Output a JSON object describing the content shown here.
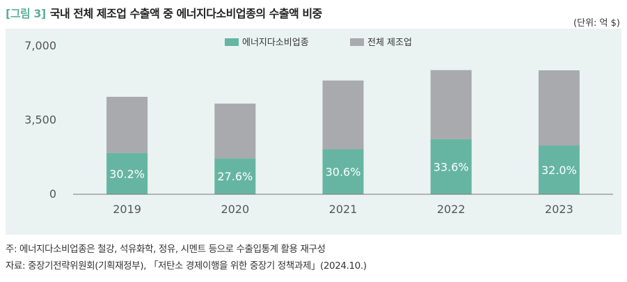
{
  "header": {
    "figure_label": "[그림 3]",
    "title": "국내 전체 제조업 수출액 중 에너지다소비업종의 수출액 비중",
    "unit": "(단위: 억 $)"
  },
  "chart_data": {
    "type": "bar",
    "stacked": true,
    "categories": [
      "2019",
      "2020",
      "2021",
      "2022",
      "2023"
    ],
    "series": [
      {
        "name": "에너지다소비업종",
        "color": "#66b5a3",
        "values": [
          1950,
          1700,
          2120,
          2600,
          2300
        ],
        "labels": [
          "30.2%",
          "27.6%",
          "30.6%",
          "33.6%",
          "32.0%"
        ]
      },
      {
        "name": "전체 제조업",
        "color": "#a9aaad",
        "values": [
          2650,
          2580,
          3250,
          3260,
          3550
        ]
      }
    ],
    "yticks": [
      0,
      3500,
      7000
    ],
    "ytick_labels": [
      "0",
      "3,500",
      "7,000"
    ],
    "ylim": [
      0,
      7000
    ],
    "legend_position": "top-center",
    "grid": false
  },
  "notes": {
    "note": "주: 에너지다소비업종은 철강, 석유화학, 정유, 시멘트 등으로 수출입통계 활용 재구성",
    "source": "자료: 중장기전략위원회(기획재정부), 「저탄소 경제이행을 위한 중장기 정책과제」(2024.10.)"
  }
}
